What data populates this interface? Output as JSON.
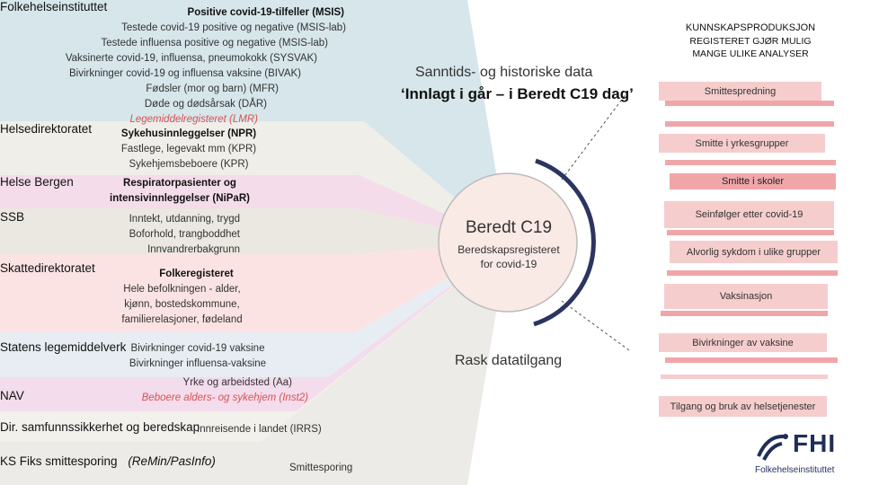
{
  "sources": [
    {
      "name": "Folkehelseinstituttet"
    },
    {
      "name": "Helsedirektoratet"
    },
    {
      "name": "Helse Bergen"
    },
    {
      "name": "SSB"
    },
    {
      "name": "Skattedirektoratet"
    },
    {
      "name": "Statens legemiddelverk"
    },
    {
      "name": "NAV"
    },
    {
      "name": "Dir. samfunnssikkerhet og beredskap"
    },
    {
      "name": "KS Fiks smittesporing",
      "extra": "(ReMin/PasInfo)"
    }
  ],
  "registers": {
    "fhi": {
      "header": "Positive covid-19-tilfeller (MSIS)",
      "lines": [
        "Testede covid-19 positive og negative (MSIS-lab)",
        "Testede influensa positive og negative (MSIS-lab)",
        "Vaksinerte covid-19, influensa, pneumokokk (SYSVAK)",
        "Bivirkninger covid-19 og influensa vaksine (BIVAK)",
        "Fødsler (mor og barn) (MFR)",
        "Døde og dødsårsak (DÅR)"
      ],
      "italic": "Legemiddelregisteret (LMR)"
    },
    "hdir": {
      "header": "Sykehusinnleggelser (NPR)",
      "lines": [
        "Fastlege, legevakt mm (KPR)",
        "Sykehjemsbeboere (KPR)"
      ]
    },
    "bergen": {
      "header_lines": [
        "Respiratorpasienter og",
        "intensivinnleggelser (NiPaR)"
      ]
    },
    "ssb": {
      "lines": [
        "Inntekt, utdanning, trygd",
        "Boforhold, trangboddhet",
        "Innvandrerbakgrunn"
      ]
    },
    "skatt": {
      "header": "Folkeregisteret",
      "lines": [
        "Hele befolkningen -  alder,",
        "kjønn, bostedskommune,",
        "familierelasjoner, fødeland"
      ]
    },
    "slv": {
      "lines": [
        "Bivirkninger covid-19 vaksine",
        "Bivirkninger influensa-vaksine"
      ]
    },
    "nav": {
      "lines": [
        "Yrke og arbeidsted (Aa)"
      ],
      "italic": "Beboere alders- og sykehjem (Inst2)"
    },
    "dsb": {
      "lines": [
        "Innreisende i landet (IRRS)"
      ]
    },
    "ks": {
      "lines": [
        "Smittesporing"
      ]
    }
  },
  "center": {
    "title": "Beredt C19",
    "subtitle_lines": [
      "Beredskapsregisteret",
      "for covid-19"
    ]
  },
  "arrows": {
    "top_label": "Sanntids- og historiske data",
    "top_quote": "‘Innlagt i går – i Beredt C19 dag’",
    "bottom_label": "Rask datatilgang"
  },
  "knowledge": {
    "title": "KUNNSKAPSPRODUKSJON",
    "subtitle_lines": [
      "REGISTERET GJØR MULIG",
      "MANGE ULIKE ANALYSER"
    ],
    "items": [
      "Smittespredning",
      "Smitte i yrkesgrupper",
      "Smitte i skoler",
      "Seinfølger etter covid-19",
      "Alvorlig sykdom i ulike grupper",
      "Vaksinasjon",
      "Bivirkninger av vaksine",
      "Tilgang og bruk av helsetjenester"
    ]
  },
  "logo": {
    "text": "FHI",
    "subtitle": "Folkehelseinstituttet"
  },
  "colors": {
    "fhi_band": "#d6e6eb",
    "hdir_band": "#efeee9",
    "bergen_band": "#f5dcea",
    "ssb_band": "#ebe7e1",
    "skatt_band": "#fbe3e3",
    "slv_band": "#e7edf3",
    "nav_band": "#f3dcec",
    "dsb_band": "#f2f1ec",
    "ks_band": "#ecebe7",
    "accent_pink": "#f2b9b9",
    "ring": "#2b3560",
    "fhi_blue": "#1f2d5a"
  }
}
